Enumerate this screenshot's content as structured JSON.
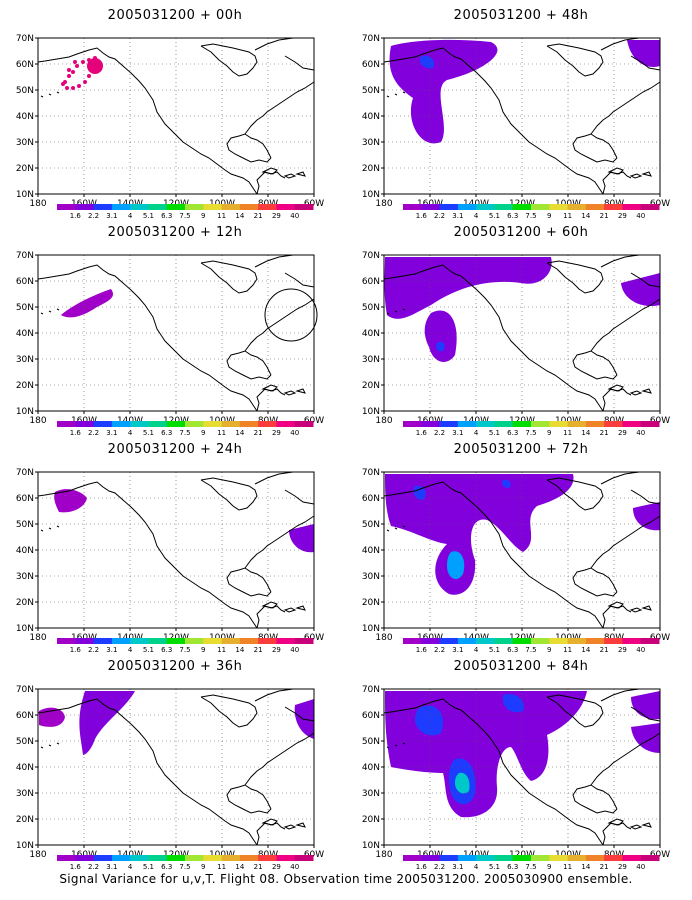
{
  "caption": "Signal Variance for u,v,T. Flight 08. Observation time 2005031200. 2005030900 ensemble.",
  "axes": {
    "lat_ticks": [
      "70N",
      "60N",
      "50N",
      "40N",
      "30N",
      "20N",
      "10N"
    ],
    "lon_ticks": [
      "180",
      "160W",
      "140W",
      "120W",
      "100W",
      "80W",
      "60W"
    ]
  },
  "colorbar": {
    "labels": [
      "1.6",
      "2.2",
      "3.1",
      "4",
      "5.1",
      "6.3",
      "7.5",
      "9",
      "11",
      "14",
      "21",
      "29",
      "40"
    ],
    "colors": [
      "#a000c8",
      "#8200dc",
      "#1e3cff",
      "#00a0ff",
      "#00c8c8",
      "#00d28c",
      "#00dc00",
      "#a0e632",
      "#e6dc32",
      "#e6af2d",
      "#f08228",
      "#fa3c3c",
      "#f00082",
      "#c8007a"
    ]
  },
  "panels": [
    {
      "title": "2005031200 + 00h"
    },
    {
      "title": "2005031200 + 48h"
    },
    {
      "title": "2005031200 + 12h"
    },
    {
      "title": "2005031200 + 60h"
    },
    {
      "title": "2005031200 + 24h"
    },
    {
      "title": "2005031200 + 72h"
    },
    {
      "title": "2005031200 + 36h"
    },
    {
      "title": "2005031200 + 84h"
    }
  ]
}
